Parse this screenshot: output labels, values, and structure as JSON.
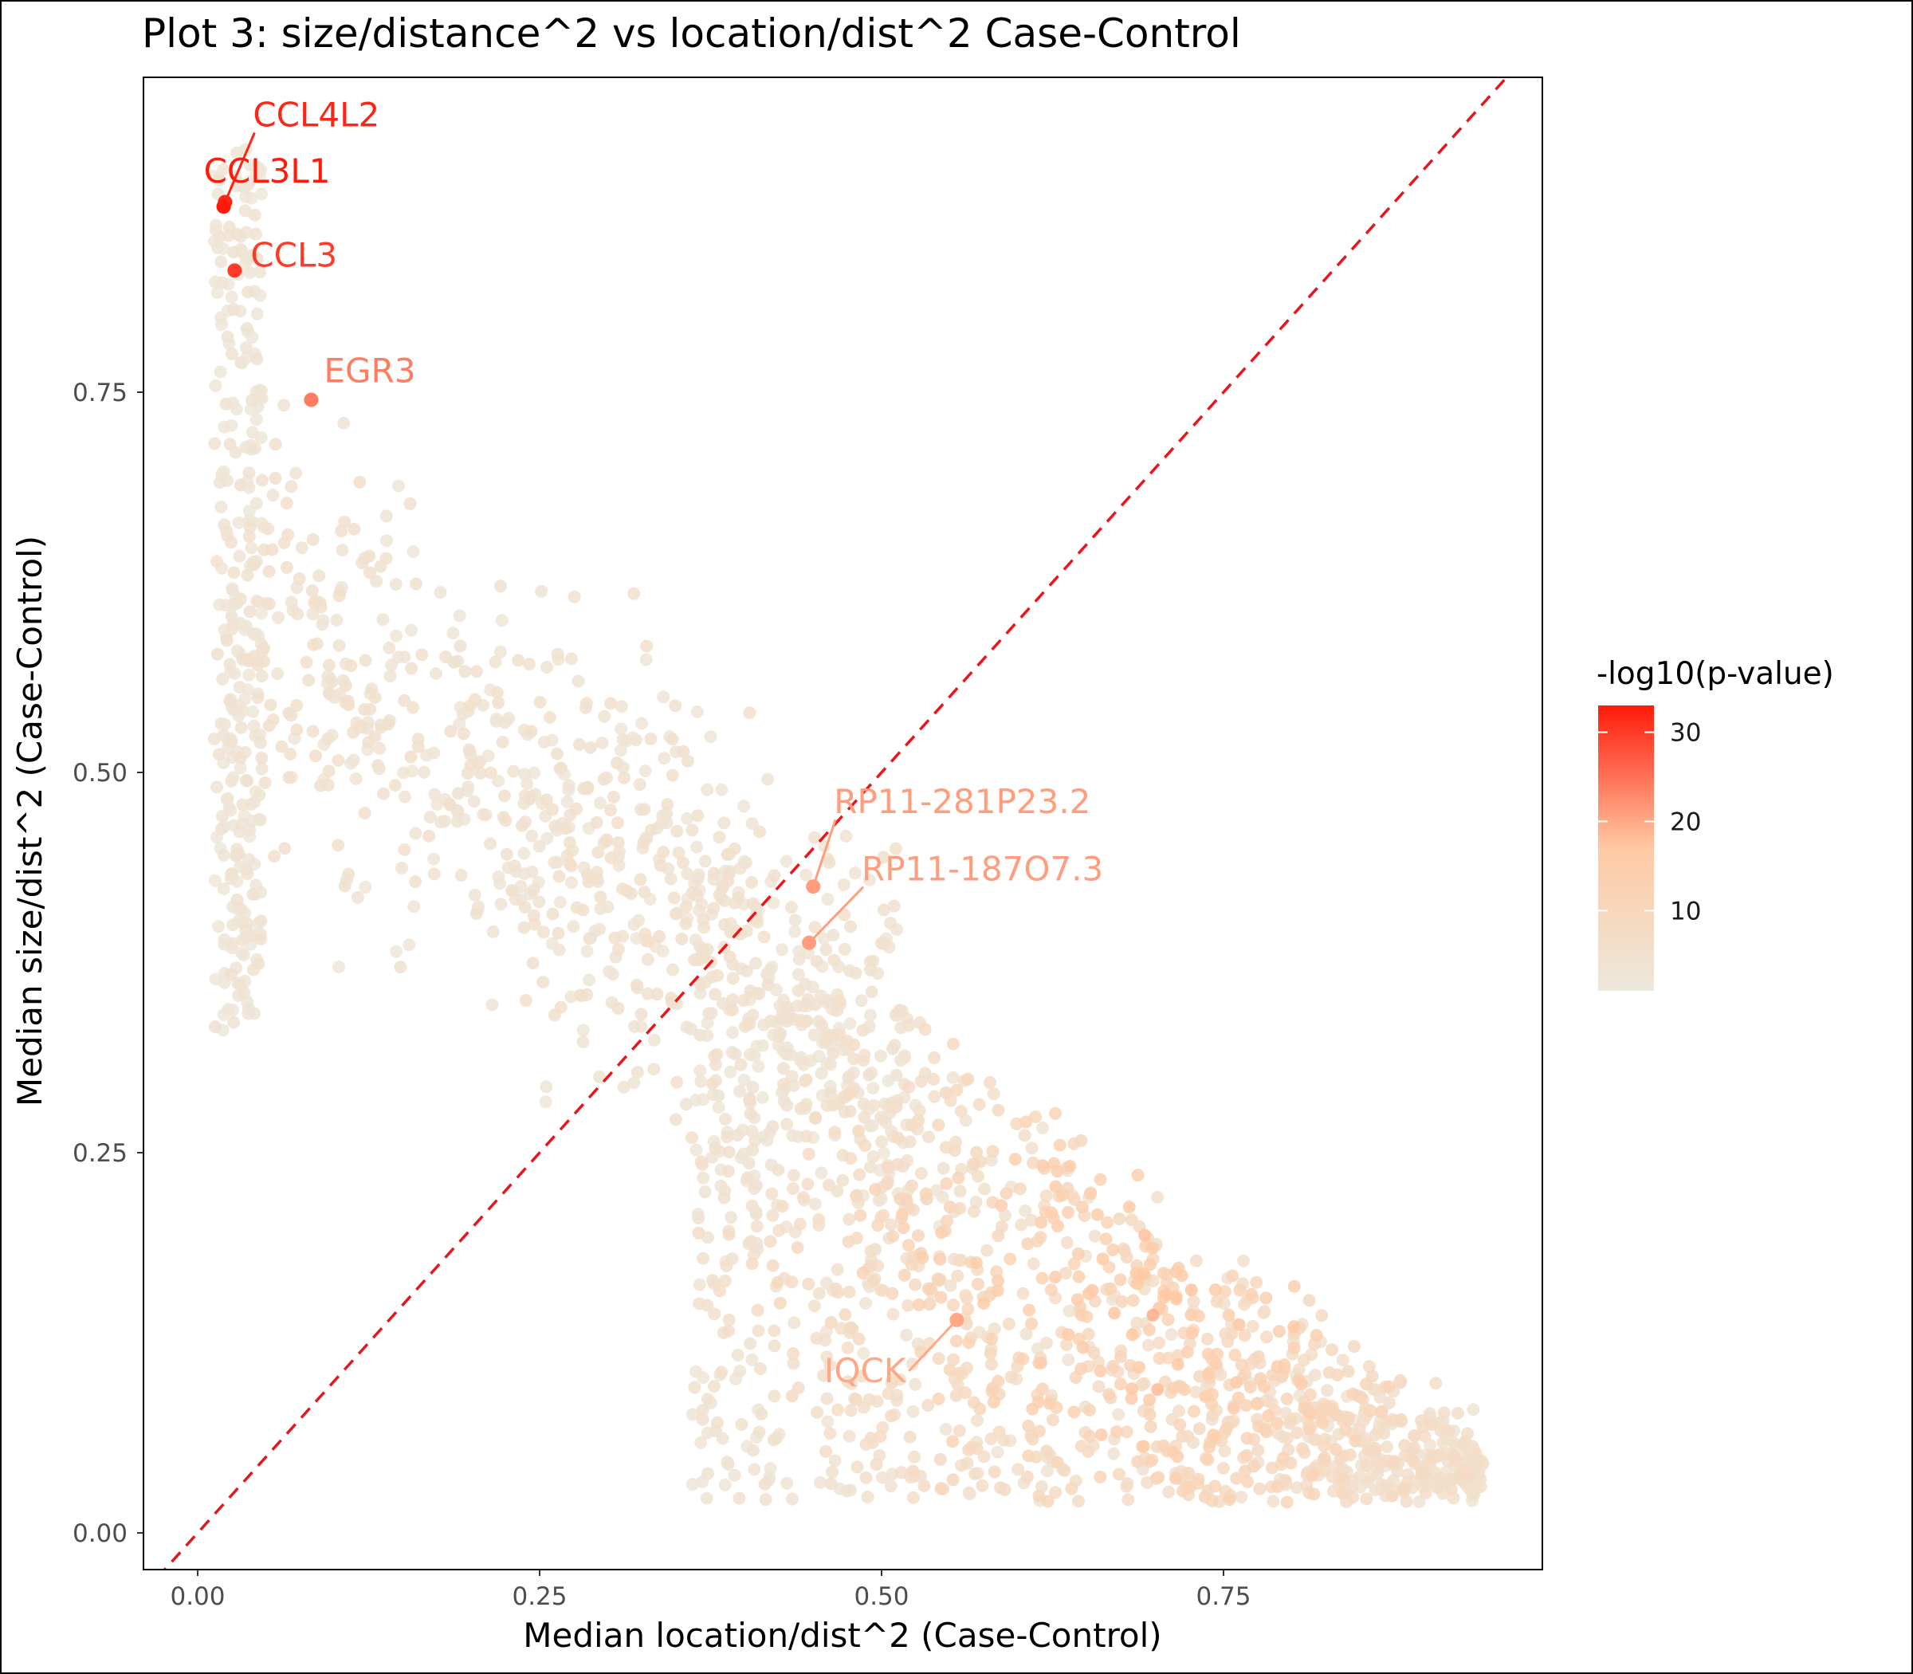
{
  "chart_data": {
    "type": "scatter",
    "title": "Plot 3: size/distance^2 vs location/dist^2 Case-Control",
    "xlabel": "Median location/dist^2 (Case-Control)",
    "ylabel": "Median size/dist^2 (Case-Control)",
    "xlim": [
      -0.04,
      0.98
    ],
    "ylim": [
      -0.02,
      0.96
    ],
    "x_ticks": [
      {
        "value": 0.0,
        "label": "0.00"
      },
      {
        "value": 0.25,
        "label": "0.25"
      },
      {
        "value": 0.5,
        "label": "0.50"
      },
      {
        "value": 0.75,
        "label": "0.75"
      }
    ],
    "y_ticks": [
      {
        "value": 0.0,
        "label": "0.00"
      },
      {
        "value": 0.25,
        "label": "0.25"
      },
      {
        "value": 0.5,
        "label": "0.50"
      },
      {
        "value": 0.75,
        "label": "0.75"
      }
    ],
    "grid": false,
    "reference_line": {
      "type": "identity",
      "slope": 1,
      "intercept": 0,
      "color": "#e8161b",
      "style": "dashed"
    },
    "color_scale": {
      "title": "-log10(p-value)",
      "range": [
        1,
        33
      ],
      "low_color": "#ece8dc",
      "mid_color": "#ffc9a3",
      "high_color": "#ff1a0a",
      "ticks": [
        {
          "value": 10,
          "label": "10"
        },
        {
          "value": 20,
          "label": "20"
        },
        {
          "value": 30,
          "label": "30"
        }
      ],
      "legend_position": "right"
    },
    "labeled_points": [
      {
        "gene": "CCL4L2",
        "x": 0.02,
        "y": 0.875,
        "neglog10p": 32
      },
      {
        "gene": "CCL3L1",
        "x": 0.019,
        "y": 0.872,
        "neglog10p": 33
      },
      {
        "gene": "CCL3",
        "x": 0.027,
        "y": 0.83,
        "neglog10p": 30
      },
      {
        "gene": "EGR3",
        "x": 0.083,
        "y": 0.745,
        "neglog10p": 24
      },
      {
        "gene": "RP11-281P23.2",
        "x": 0.45,
        "y": 0.425,
        "neglog10p": 21
      },
      {
        "gene": "RP11-187O7.3",
        "x": 0.447,
        "y": 0.388,
        "neglog10p": 21
      },
      {
        "gene": "IQCK",
        "x": 0.555,
        "y": 0.14,
        "neglog10p": 20
      }
    ],
    "background_points": {
      "description_free": true,
      "count": 2400,
      "clusters": [
        {
          "x_range": [
            0.0,
            0.05
          ],
          "y_range": [
            0.35,
            0.9
          ],
          "neglog10p_typical": 2
        },
        {
          "x_range": [
            0.05,
            0.45
          ],
          "y_range": [
            0.2,
            0.7
          ],
          "neglog10p_typical": 3
        },
        {
          "x_range": [
            0.4,
            0.95
          ],
          "y_range": [
            0.02,
            0.45
          ],
          "neglog10p_typical": 8
        }
      ]
    }
  }
}
